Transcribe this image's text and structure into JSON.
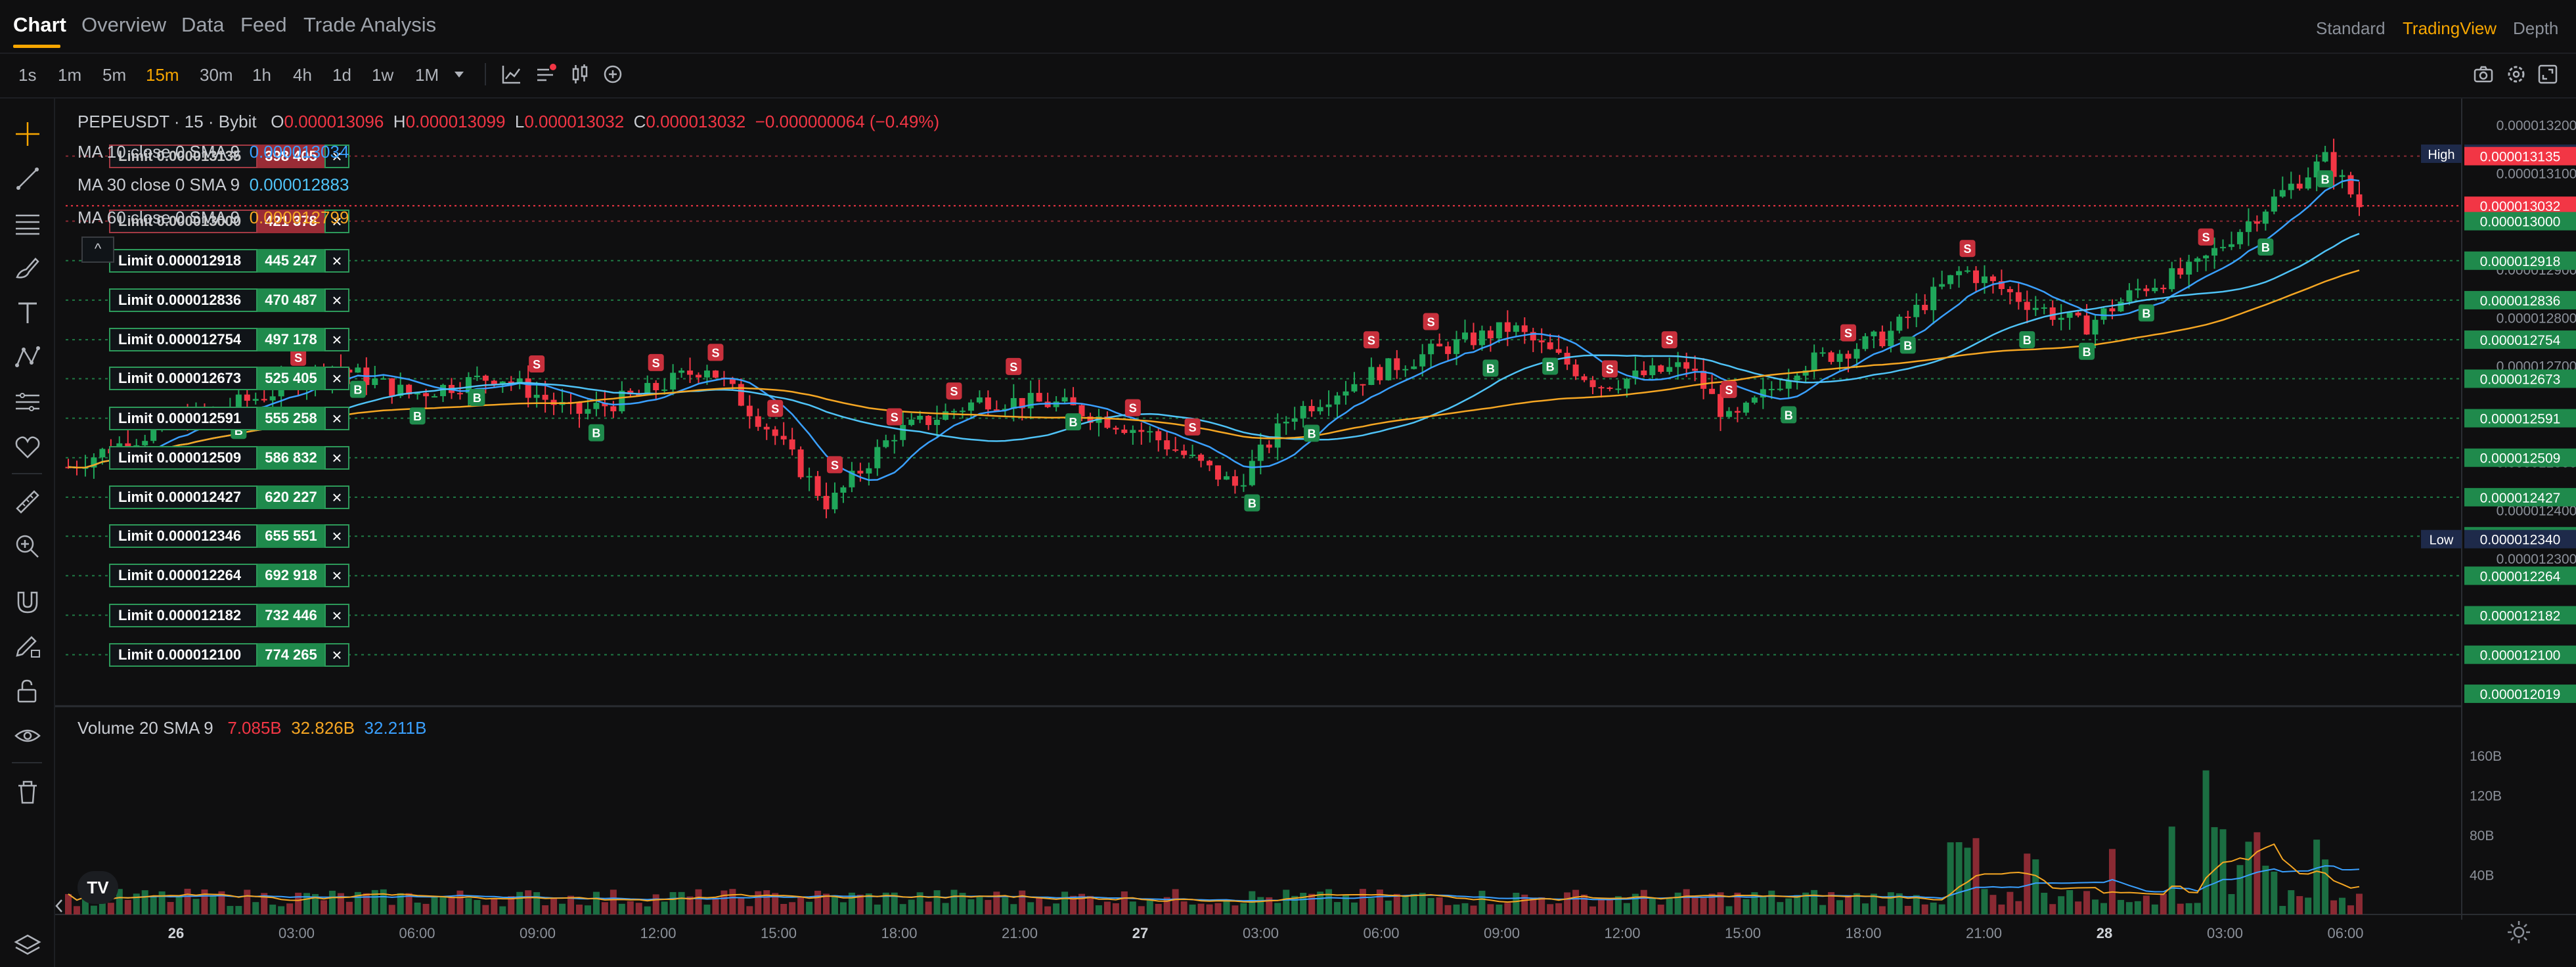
{
  "nav": {
    "tabs": [
      "Chart",
      "Overview",
      "Data",
      "Feed",
      "Trade Analysis"
    ],
    "views": [
      "Standard",
      "TradingView",
      "Depth"
    ],
    "active_view": "TradingView"
  },
  "toolbar": {
    "timeframes": [
      "1s",
      "1m",
      "5m",
      "15m",
      "30m",
      "1h",
      "4h",
      "1d",
      "1w",
      "1M"
    ],
    "active_timeframe": "15m"
  },
  "legend": {
    "symbol": "PEPEUSDT · 15 · Bybit",
    "o_label": "O",
    "o": "0.000013096",
    "h_label": "H",
    "h": "0.000013099",
    "l_label": "L",
    "l": "0.000013032",
    "c_label": "C",
    "c": "0.000013032",
    "change": "−0.000000064 (−0.49%)",
    "ma10_label": "MA 10 close 0 SMA 9",
    "ma10": "0.000013034",
    "ma30_label": "MA 30 close 0 SMA 9",
    "ma30": "0.000012883",
    "ma60_label": "MA 60 close 0 SMA 9",
    "ma60": "0.000012799",
    "volume_label": "Volume 20 SMA 9",
    "vol1": "7.085B",
    "vol2": "32.826B",
    "vol3": "32.211B"
  },
  "orders": [
    {
      "label": "Limit 0.000013135",
      "qty": "398 405",
      "side": "sell"
    },
    {
      "label": "Limit 0.000013000",
      "qty": "421 378",
      "side": "sell"
    },
    {
      "label": "Limit 0.000012918",
      "qty": "445 247",
      "side": "buy"
    },
    {
      "label": "Limit 0.000012836",
      "qty": "470 487",
      "side": "buy"
    },
    {
      "label": "Limit 0.000012754",
      "qty": "497 178",
      "side": "buy"
    },
    {
      "label": "Limit 0.000012673",
      "qty": "525 405",
      "side": "buy"
    },
    {
      "label": "Limit 0.000012591",
      "qty": "555 258",
      "side": "buy"
    },
    {
      "label": "Limit 0.000012509",
      "qty": "586 832",
      "side": "buy"
    },
    {
      "label": "Limit 0.000012427",
      "qty": "620 227",
      "side": "buy"
    },
    {
      "label": "Limit 0.000012346",
      "qty": "655 551",
      "side": "buy"
    },
    {
      "label": "Limit 0.000012264",
      "qty": "692 918",
      "side": "buy"
    },
    {
      "label": "Limit 0.000012182",
      "qty": "732 446",
      "side": "buy"
    },
    {
      "label": "Limit 0.000012100",
      "qty": "774 265",
      "side": "buy"
    }
  ],
  "price_axis": {
    "ticks": [
      "0.000013200",
      "0.000013100",
      "0.000013000",
      "0.000012900",
      "0.000012800",
      "0.000012700",
      "0.000012600",
      "0.000012500",
      "0.000012400",
      "0.000012300"
    ],
    "markers": [
      {
        "label": "High",
        "value": "0.000013140",
        "color": "#1e2a4a"
      },
      {
        "label": "",
        "value": "0.000013135",
        "color": "#f23645"
      },
      {
        "label": "",
        "value": "0.000013032",
        "color": "#f23645"
      },
      {
        "label": "",
        "value": "0.000013000",
        "color": "#1f8a4c"
      },
      {
        "label": "",
        "value": "0.000012918",
        "color": "#1f8a4c"
      },
      {
        "label": "",
        "value": "0.000012836",
        "color": "#1f8a4c"
      },
      {
        "label": "",
        "value": "0.000012754",
        "color": "#1f8a4c"
      },
      {
        "label": "",
        "value": "0.000012673",
        "color": "#1f8a4c"
      },
      {
        "label": "",
        "value": "0.000012591",
        "color": "#1f8a4c"
      },
      {
        "label": "",
        "value": "0.000012509",
        "color": "#1f8a4c"
      },
      {
        "label": "",
        "value": "0.000012427",
        "color": "#1f8a4c"
      },
      {
        "label": "",
        "value": "0.000012346",
        "color": "#1f8a4c"
      },
      {
        "label": "Low",
        "value": "0.000012340",
        "color": "#1e2a4a"
      },
      {
        "label": "",
        "value": "0.000012264",
        "color": "#1f8a4c"
      },
      {
        "label": "",
        "value": "0.000012182",
        "color": "#1f8a4c"
      },
      {
        "label": "",
        "value": "0.000012100",
        "color": "#1f8a4c"
      },
      {
        "label": "",
        "value": "0.000012019",
        "color": "#1f8a4c"
      }
    ]
  },
  "volume_axis": {
    "ticks": [
      "160B",
      "120B",
      "80B",
      "40B"
    ]
  },
  "time_axis": {
    "ticks": [
      "26",
      "03:00",
      "06:00",
      "09:00",
      "12:00",
      "15:00",
      "18:00",
      "21:00",
      "27",
      "03:00",
      "06:00",
      "09:00",
      "12:00",
      "15:00",
      "18:00",
      "21:00",
      "28",
      "03:00",
      "06:00"
    ]
  },
  "colors": {
    "up": "#1fa75a",
    "down": "#f23645",
    "ma10": "#3aa0ff",
    "ma30": "#4fc3f7",
    "ma60": "#f5a623",
    "accent": "#f7a600"
  },
  "chart_data": {
    "type": "candlestick",
    "symbol": "PEPEUSDT",
    "interval": "15",
    "exchange": "Bybit",
    "ylim": [
      1.2e-05,
      1.32e-05
    ],
    "high": 1.314e-05,
    "low": 1.234e-05,
    "last": {
      "open": 1.3096e-05,
      "high": 1.3099e-05,
      "low": 1.3032e-05,
      "close": 1.3032e-05
    },
    "ma": [
      {
        "name": "MA 10",
        "last": 1.3034e-05
      },
      {
        "name": "MA 30",
        "last": 1.2883e-05
      },
      {
        "name": "MA 60",
        "last": 1.2799e-05
      }
    ],
    "volume_ylim": [
      0,
      160000000000
    ],
    "volume_last": [
      7085000000,
      32826000000,
      32211000000
    ],
    "x_ticks": [
      "26",
      "03:00",
      "06:00",
      "09:00",
      "12:00",
      "15:00",
      "18:00",
      "21:00",
      "27",
      "03:00",
      "06:00",
      "09:00",
      "12:00",
      "15:00",
      "18:00",
      "21:00",
      "28",
      "03:00",
      "06:00"
    ],
    "buy_markers_label": "B",
    "sell_markers_label": "S"
  }
}
